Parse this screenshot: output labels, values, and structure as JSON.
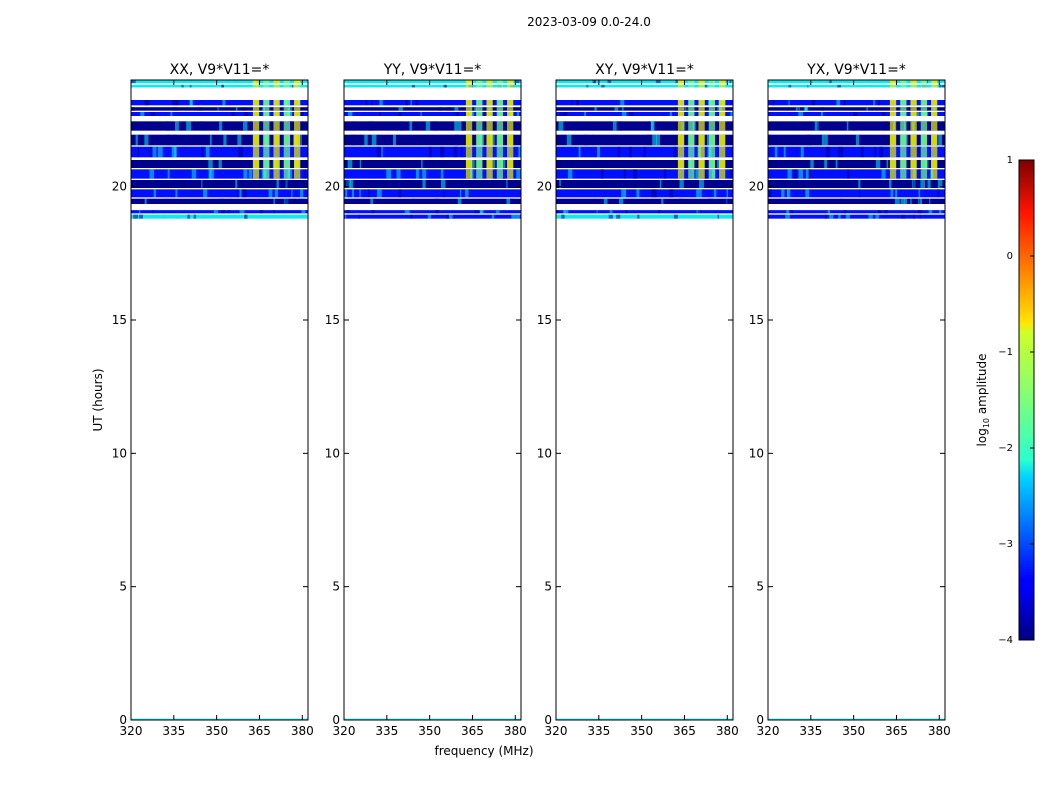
{
  "chart_data": {
    "type": "heatmap",
    "suptitle": "2023-03-09 0.0-24.0",
    "xlabel": "frequency (MHz)",
    "ylabel": "UT (hours)",
    "xlim": [
      320,
      382
    ],
    "ylim": [
      0,
      24
    ],
    "xticks": [
      320,
      335,
      350,
      365,
      380
    ],
    "yticks": [
      0,
      5,
      10,
      15,
      20
    ],
    "panels": [
      {
        "title": "XX, V9*V11=*",
        "pol": "XX"
      },
      {
        "title": "YY, V9*V11=*",
        "pol": "YY"
      },
      {
        "title": "XY, V9*V11=*",
        "pol": "XY"
      },
      {
        "title": "YX, V9*V11=*",
        "pol": "YX"
      }
    ],
    "data_time_ranges_hours": [
      [
        18.8,
        24.0
      ],
      [
        0.0,
        0.05
      ]
    ],
    "bright_band_mhz": [
      362,
      380
    ],
    "colorbar": {
      "label": "log",
      "label_sub": "10",
      "label_suffix": " amplitude",
      "range": [
        -4,
        1
      ],
      "ticks": [
        1,
        0,
        -1,
        -2,
        -3,
        -4
      ],
      "tick_labels": [
        "1",
        "0",
        "−1",
        "−2",
        "−3",
        "−4"
      ],
      "colormap": "jet"
    },
    "colors": {
      "dark_blue": "#00008f",
      "blue": "#0010ff",
      "cyan": "#10e8f0",
      "green": "#70ff90",
      "yellow": "#e8f000"
    }
  }
}
